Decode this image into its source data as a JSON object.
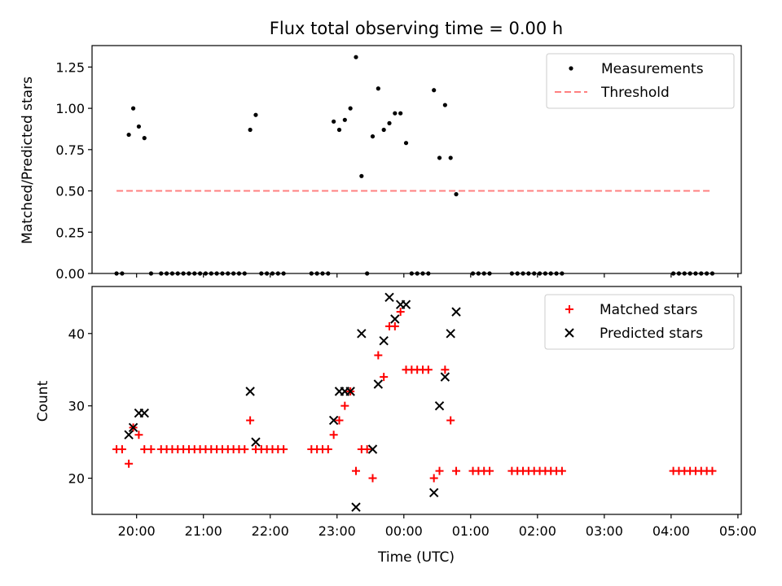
{
  "chart_data": [
    {
      "type": "scatter",
      "title": "Flux total observing time = 0.00 h",
      "xlabel": "",
      "ylabel": "Matched/Predicted stars",
      "xlim": [
        "19:20",
        "05:03"
      ],
      "ylim": [
        0,
        1.38
      ],
      "yticks": [
        0.0,
        0.25,
        0.5,
        0.75,
        1.0,
        1.25
      ],
      "ytick_labels": [
        "0.00",
        "0.25",
        "0.50",
        "0.75",
        "1.00",
        "1.25"
      ],
      "xticks": [
        "20:00",
        "21:00",
        "22:00",
        "23:00",
        "00:00",
        "01:00",
        "02:00",
        "03:00",
        "04:00",
        "05:00"
      ],
      "legend_position": "upper right",
      "series": [
        {
          "name": "Measurements",
          "marker": "dot",
          "color": "#000000",
          "points": [
            [
              "19:42",
              0
            ],
            [
              "19:47",
              0
            ],
            [
              "19:53",
              0.84
            ],
            [
              "19:57",
              1.0
            ],
            [
              "20:02",
              0.89
            ],
            [
              "20:07",
              0.82
            ],
            [
              "20:13",
              0
            ],
            [
              "20:22",
              0
            ],
            [
              "20:27",
              0
            ],
            [
              "20:32",
              0
            ],
            [
              "20:37",
              0
            ],
            [
              "20:42",
              0
            ],
            [
              "20:47",
              0
            ],
            [
              "20:52",
              0
            ],
            [
              "20:57",
              0
            ],
            [
              "21:02",
              0
            ],
            [
              "21:07",
              0
            ],
            [
              "21:12",
              0
            ],
            [
              "21:17",
              0
            ],
            [
              "21:22",
              0
            ],
            [
              "21:27",
              0
            ],
            [
              "21:32",
              0
            ],
            [
              "21:37",
              0
            ],
            [
              "21:42",
              0.87
            ],
            [
              "21:47",
              0.96
            ],
            [
              "21:52",
              0
            ],
            [
              "21:57",
              0
            ],
            [
              "22:02",
              0
            ],
            [
              "22:07",
              0
            ],
            [
              "22:12",
              0
            ],
            [
              "22:37",
              0
            ],
            [
              "22:42",
              0
            ],
            [
              "22:47",
              0
            ],
            [
              "22:52",
              0
            ],
            [
              "22:57",
              0.92
            ],
            [
              "23:02",
              0.87
            ],
            [
              "23:07",
              0.93
            ],
            [
              "23:12",
              1.0
            ],
            [
              "23:17",
              1.31
            ],
            [
              "23:22",
              0.59
            ],
            [
              "23:27",
              0
            ],
            [
              "23:32",
              0.83
            ],
            [
              "23:37",
              1.12
            ],
            [
              "23:42",
              0.87
            ],
            [
              "23:47",
              0.91
            ],
            [
              "23:52",
              0.97
            ],
            [
              "23:57",
              0.97
            ],
            [
              "00:02",
              0.79
            ],
            [
              "00:07",
              0
            ],
            [
              "00:12",
              0
            ],
            [
              "00:17",
              0
            ],
            [
              "00:22",
              0
            ],
            [
              "00:27",
              1.11
            ],
            [
              "00:32",
              0.7
            ],
            [
              "00:37",
              1.02
            ],
            [
              "00:42",
              0.7
            ],
            [
              "00:47",
              0.48
            ],
            [
              "01:02",
              0
            ],
            [
              "01:07",
              0
            ],
            [
              "01:12",
              0
            ],
            [
              "01:17",
              0
            ],
            [
              "01:37",
              0
            ],
            [
              "01:42",
              0
            ],
            [
              "01:47",
              0
            ],
            [
              "01:52",
              0
            ],
            [
              "01:57",
              0
            ],
            [
              "02:02",
              0
            ],
            [
              "02:07",
              0
            ],
            [
              "02:12",
              0
            ],
            [
              "02:17",
              0
            ],
            [
              "02:22",
              0
            ],
            [
              "04:02",
              0
            ],
            [
              "04:07",
              0
            ],
            [
              "04:12",
              0
            ],
            [
              "04:17",
              0
            ],
            [
              "04:22",
              0
            ],
            [
              "04:27",
              0
            ],
            [
              "04:32",
              0
            ],
            [
              "04:37",
              0
            ]
          ]
        },
        {
          "name": "Threshold",
          "marker": "dashed-line",
          "color": "#ff8080",
          "points": [
            [
              "19:42",
              0.5
            ],
            [
              "04:37",
              0.5
            ]
          ]
        }
      ]
    },
    {
      "type": "scatter",
      "title": "",
      "xlabel": "Time (UTC)",
      "ylabel": "Count",
      "xlim": [
        "19:20",
        "05:03"
      ],
      "ylim": [
        15,
        46.5
      ],
      "yticks": [
        20,
        30,
        40
      ],
      "ytick_labels": [
        "20",
        "30",
        "40"
      ],
      "xticks": [
        "20:00",
        "21:00",
        "22:00",
        "23:00",
        "00:00",
        "01:00",
        "02:00",
        "03:00",
        "04:00",
        "05:00"
      ],
      "legend_position": "upper right",
      "series": [
        {
          "name": "Matched stars",
          "marker": "plus",
          "color": "#ff0000",
          "points": [
            [
              "19:42",
              24
            ],
            [
              "19:47",
              24
            ],
            [
              "19:53",
              22
            ],
            [
              "19:57",
              27
            ],
            [
              "20:02",
              26
            ],
            [
              "20:07",
              24
            ],
            [
              "20:13",
              24
            ],
            [
              "20:22",
              24
            ],
            [
              "20:27",
              24
            ],
            [
              "20:32",
              24
            ],
            [
              "20:37",
              24
            ],
            [
              "20:42",
              24
            ],
            [
              "20:47",
              24
            ],
            [
              "20:52",
              24
            ],
            [
              "20:57",
              24
            ],
            [
              "21:02",
              24
            ],
            [
              "21:07",
              24
            ],
            [
              "21:12",
              24
            ],
            [
              "21:17",
              24
            ],
            [
              "21:22",
              24
            ],
            [
              "21:27",
              24
            ],
            [
              "21:32",
              24
            ],
            [
              "21:37",
              24
            ],
            [
              "21:42",
              28
            ],
            [
              "21:47",
              24
            ],
            [
              "21:52",
              24
            ],
            [
              "21:57",
              24
            ],
            [
              "22:02",
              24
            ],
            [
              "22:07",
              24
            ],
            [
              "22:12",
              24
            ],
            [
              "22:37",
              24
            ],
            [
              "22:42",
              24
            ],
            [
              "22:47",
              24
            ],
            [
              "22:52",
              24
            ],
            [
              "22:57",
              26
            ],
            [
              "23:02",
              28
            ],
            [
              "23:07",
              30
            ],
            [
              "23:12",
              32
            ],
            [
              "23:17",
              21
            ],
            [
              "23:22",
              24
            ],
            [
              "23:27",
              24
            ],
            [
              "23:32",
              20
            ],
            [
              "23:37",
              37
            ],
            [
              "23:42",
              34
            ],
            [
              "23:47",
              41
            ],
            [
              "23:52",
              41
            ],
            [
              "23:57",
              43
            ],
            [
              "00:02",
              35
            ],
            [
              "00:07",
              35
            ],
            [
              "00:12",
              35
            ],
            [
              "00:17",
              35
            ],
            [
              "00:22",
              35
            ],
            [
              "00:27",
              20
            ],
            [
              "00:32",
              21
            ],
            [
              "00:37",
              35
            ],
            [
              "00:42",
              28
            ],
            [
              "00:47",
              21
            ],
            [
              "01:02",
              21
            ],
            [
              "01:07",
              21
            ],
            [
              "01:12",
              21
            ],
            [
              "01:17",
              21
            ],
            [
              "01:37",
              21
            ],
            [
              "01:42",
              21
            ],
            [
              "01:47",
              21
            ],
            [
              "01:52",
              21
            ],
            [
              "01:57",
              21
            ],
            [
              "02:02",
              21
            ],
            [
              "02:07",
              21
            ],
            [
              "02:12",
              21
            ],
            [
              "02:17",
              21
            ],
            [
              "02:22",
              21
            ],
            [
              "04:02",
              21
            ],
            [
              "04:07",
              21
            ],
            [
              "04:12",
              21
            ],
            [
              "04:17",
              21
            ],
            [
              "04:22",
              21
            ],
            [
              "04:27",
              21
            ],
            [
              "04:32",
              21
            ],
            [
              "04:37",
              21
            ]
          ]
        },
        {
          "name": "Predicted stars",
          "marker": "x",
          "color": "#000000",
          "points": [
            [
              "19:53",
              26
            ],
            [
              "19:57",
              27
            ],
            [
              "20:02",
              29
            ],
            [
              "20:07",
              29
            ],
            [
              "21:42",
              32
            ],
            [
              "21:47",
              25
            ],
            [
              "22:57",
              28
            ],
            [
              "23:02",
              32
            ],
            [
              "23:07",
              32
            ],
            [
              "23:12",
              32
            ],
            [
              "23:17",
              16
            ],
            [
              "23:22",
              40
            ],
            [
              "23:32",
              24
            ],
            [
              "23:37",
              33
            ],
            [
              "23:42",
              39
            ],
            [
              "23:47",
              45
            ],
            [
              "23:52",
              42
            ],
            [
              "23:57",
              44
            ],
            [
              "00:02",
              44
            ],
            [
              "00:27",
              18
            ],
            [
              "00:32",
              30
            ],
            [
              "00:37",
              34
            ],
            [
              "00:42",
              40
            ],
            [
              "00:47",
              43
            ]
          ]
        }
      ]
    }
  ]
}
